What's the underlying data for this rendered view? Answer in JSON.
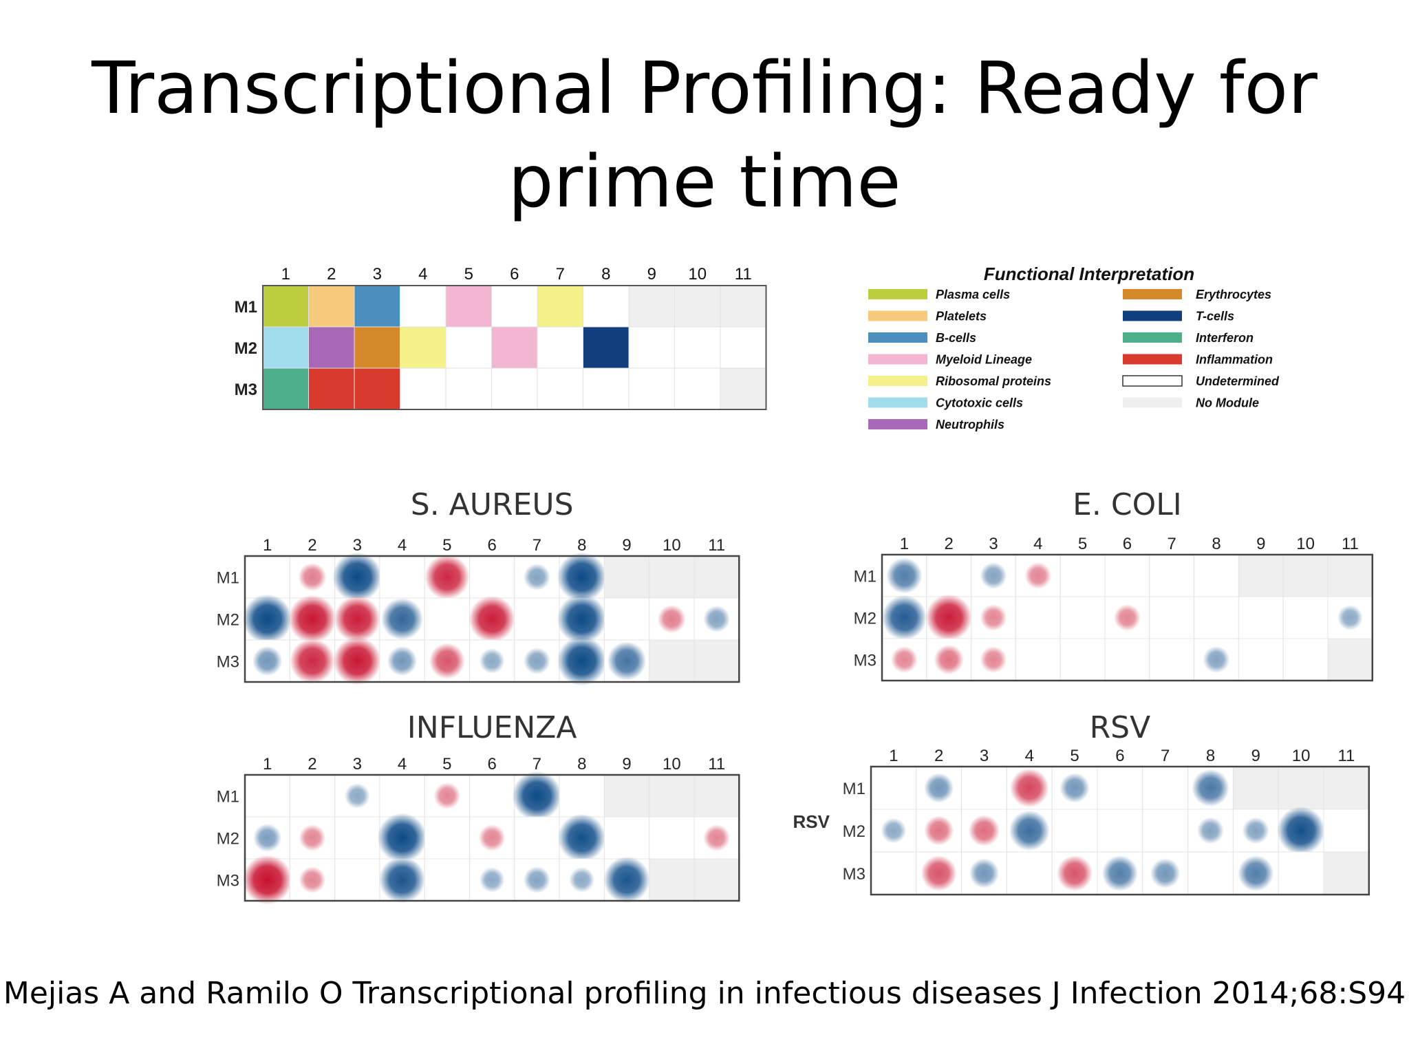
{
  "slide": {
    "title_line1": "Transcriptional Profiling: Ready for",
    "title_line2": "prime time",
    "citation": "Mejias A and Ramilo O Transcriptional profiling in infectious diseases J Infection 2014;68:S94"
  },
  "colors": {
    "plasma_cells": "#bccd3e",
    "platelets": "#f7c97a",
    "b_cells": "#4a8fbe",
    "myeloid_lineage": "#f2b6d2",
    "ribosomal_proteins": "#f5f18a",
    "cytotoxic_cells": "#9fdcec",
    "neutrophils": "#a868b8",
    "erythrocytes": "#d48a2b",
    "t_cells": "#113f7e",
    "interferon": "#4bb08a",
    "inflammation": "#d83a2d",
    "no_module": "#efefef",
    "up": "#c8102e",
    "down": "#0d4a87"
  },
  "chart_data": [
    {
      "type": "heatmap",
      "id": "module-map",
      "title": "",
      "columns": [
        "1",
        "2",
        "3",
        "4",
        "5",
        "6",
        "7",
        "8",
        "9",
        "10",
        "11"
      ],
      "rows": [
        "M1",
        "M2",
        "M3"
      ],
      "cells": [
        [
          "plasma_cells",
          "platelets",
          "b_cells",
          "undetermined",
          "myeloid_lineage",
          "undetermined",
          "ribosomal_proteins",
          "undetermined",
          "no_module",
          "no_module",
          "no_module"
        ],
        [
          "cytotoxic_cells",
          "neutrophils",
          "erythrocytes",
          "ribosomal_proteins",
          "undetermined",
          "myeloid_lineage",
          "undetermined",
          "t_cells",
          "undetermined",
          "undetermined",
          "undetermined"
        ],
        [
          "interferon",
          "inflammation",
          "inflammation",
          "undetermined",
          "undetermined",
          "undetermined",
          "undetermined",
          "undetermined",
          "undetermined",
          "undetermined",
          "no_module"
        ]
      ],
      "legend_title": "Functional Interpretation",
      "legend": [
        {
          "key": "plasma_cells",
          "label": "Plasma cells"
        },
        {
          "key": "platelets",
          "label": "Platelets"
        },
        {
          "key": "b_cells",
          "label": "B-cells"
        },
        {
          "key": "myeloid_lineage",
          "label": "Myeloid Lineage"
        },
        {
          "key": "ribosomal_proteins",
          "label": "Ribosomal proteins"
        },
        {
          "key": "cytotoxic_cells",
          "label": "Cytotoxic cells"
        },
        {
          "key": "neutrophils",
          "label": "Neutrophils"
        },
        {
          "key": "erythrocytes",
          "label": "Erythrocytes"
        },
        {
          "key": "t_cells",
          "label": "T-cells"
        },
        {
          "key": "interferon",
          "label": "Interferon"
        },
        {
          "key": "inflammation",
          "label": "Inflammation"
        },
        {
          "key": "undetermined",
          "label": "Undetermined"
        },
        {
          "key": "no_module",
          "label": "No Module"
        }
      ]
    },
    {
      "type": "heatmap",
      "id": "s-aureus",
      "title": "S. AUREUS",
      "side_label": "",
      "columns": [
        "1",
        "2",
        "3",
        "4",
        "5",
        "6",
        "7",
        "8",
        "9",
        "10",
        "11"
      ],
      "rows": [
        "M1",
        "M2",
        "M3"
      ],
      "values": [
        [
          0,
          0.3,
          -1.0,
          0,
          0.85,
          0,
          -0.25,
          -1.0,
          null,
          null,
          null
        ],
        [
          -1.0,
          0.95,
          0.9,
          -0.75,
          0,
          0.9,
          0,
          -1.0,
          0,
          0.3,
          -0.25
        ],
        [
          -0.35,
          0.85,
          0.95,
          -0.35,
          0.55,
          -0.2,
          -0.25,
          -1.0,
          -0.65,
          null,
          null
        ]
      ]
    },
    {
      "type": "heatmap",
      "id": "e-coli",
      "title": "E. COLI",
      "side_label": "",
      "columns": [
        "1",
        "2",
        "3",
        "4",
        "5",
        "6",
        "7",
        "8",
        "9",
        "10",
        "11"
      ],
      "rows": [
        "M1",
        "M2",
        "M3"
      ],
      "values": [
        [
          -0.55,
          0,
          -0.25,
          0.25,
          0,
          0,
          0,
          0,
          null,
          null,
          null
        ],
        [
          -0.85,
          0.9,
          0.25,
          0,
          0,
          0.25,
          0,
          0,
          0,
          0,
          -0.2
        ],
        [
          0.25,
          0.35,
          0.25,
          0,
          0,
          0,
          0,
          -0.25,
          0,
          0,
          null
        ]
      ]
    },
    {
      "type": "heatmap",
      "id": "influenza",
      "title": "INFLUENZA",
      "side_label": "",
      "columns": [
        "1",
        "2",
        "3",
        "4",
        "5",
        "6",
        "7",
        "8",
        "9",
        "10",
        "11"
      ],
      "rows": [
        "M1",
        "M2",
        "M3"
      ],
      "values": [
        [
          0,
          0,
          -0.2,
          0,
          0.25,
          0,
          -1.0,
          0,
          null,
          null,
          null
        ],
        [
          -0.3,
          0.25,
          0,
          -1.0,
          0,
          0.25,
          0,
          -0.95,
          0,
          0,
          0.25
        ],
        [
          1.0,
          0.25,
          0,
          -0.9,
          0,
          -0.2,
          -0.25,
          -0.2,
          -0.9,
          null,
          null
        ]
      ]
    },
    {
      "type": "heatmap",
      "id": "rsv",
      "title": "RSV",
      "side_label": "RSV",
      "columns": [
        "1",
        "2",
        "3",
        "4",
        "5",
        "6",
        "7",
        "8",
        "9",
        "10",
        "11"
      ],
      "rows": [
        "M1",
        "M2",
        "M3"
      ],
      "values": [
        [
          0,
          -0.35,
          0,
          0.65,
          -0.35,
          0,
          0,
          -0.6,
          null,
          null,
          null
        ],
        [
          -0.2,
          0.35,
          0.4,
          -0.7,
          0,
          0,
          0,
          -0.25,
          -0.25,
          -0.95,
          0
        ],
        [
          0,
          0.55,
          -0.35,
          0,
          0.55,
          -0.55,
          -0.35,
          0,
          -0.55,
          0,
          null
        ]
      ]
    }
  ]
}
